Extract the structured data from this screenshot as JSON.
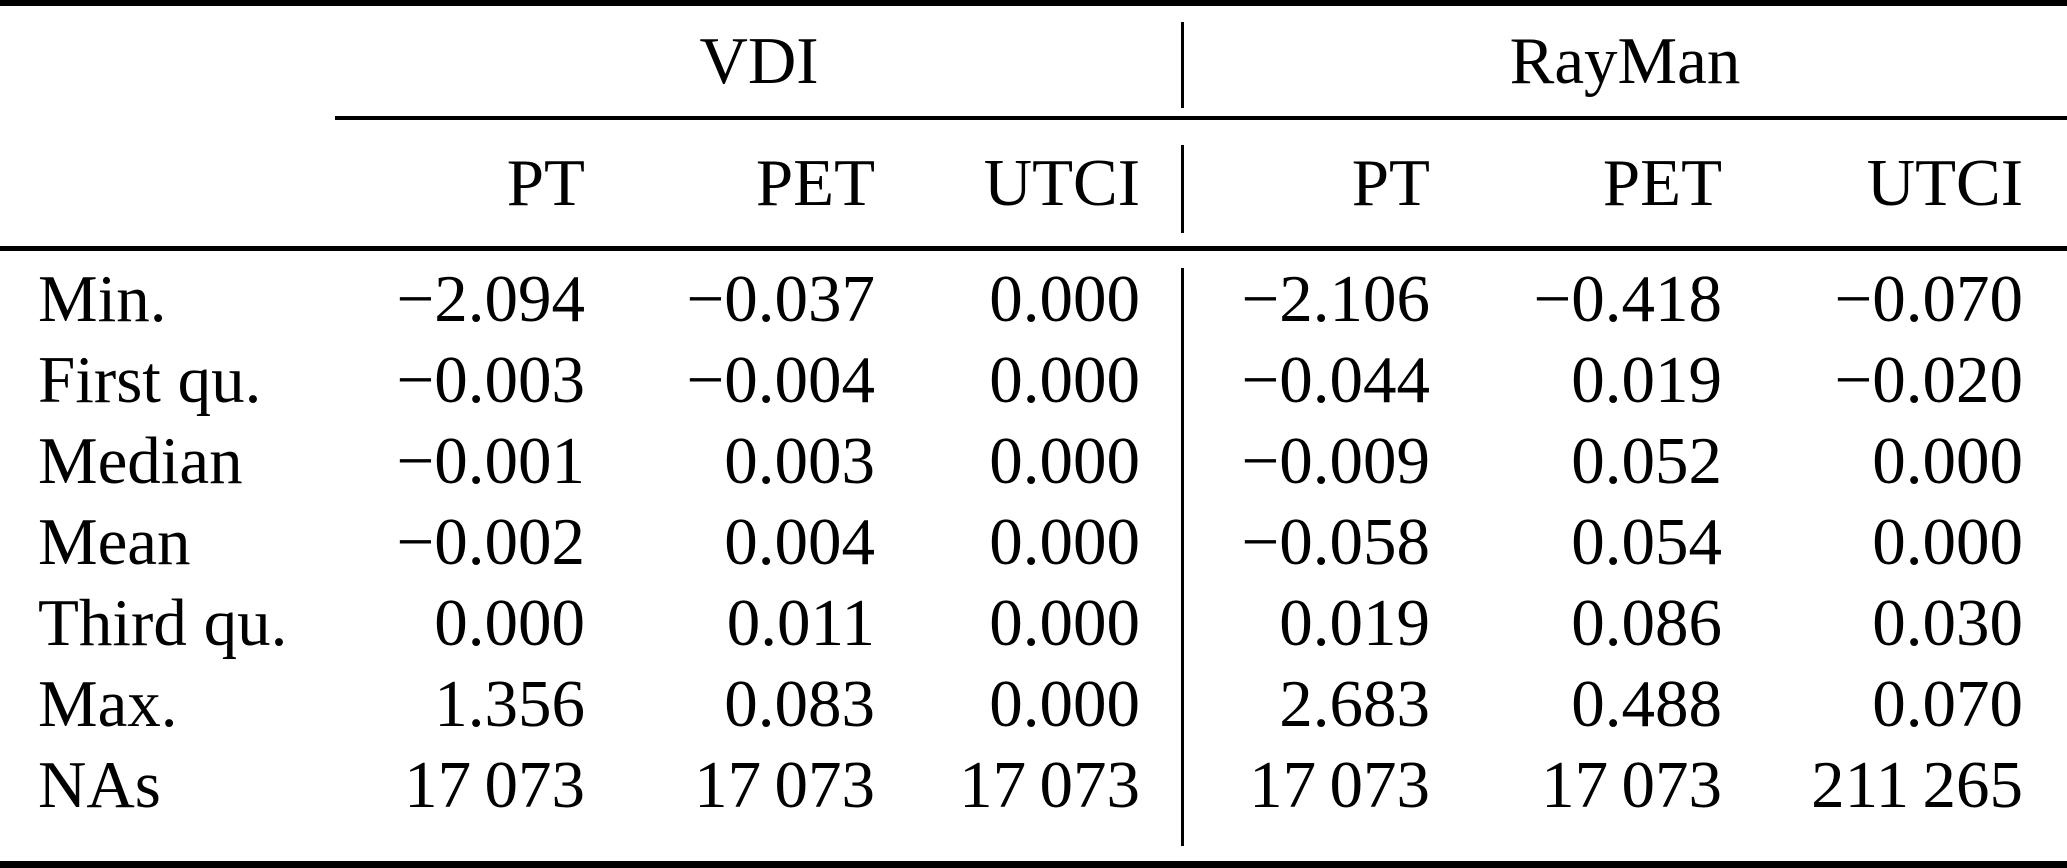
{
  "table": {
    "group_headers": [
      "VDI",
      "RayMan"
    ],
    "column_headers": [
      "PT",
      "PET",
      "UTCI",
      "PT",
      "PET",
      "UTCI"
    ],
    "rows": [
      {
        "label": "Min.",
        "cells": [
          "−2.094",
          "−0.037",
          "0.000",
          "−2.106",
          "−0.418",
          "−0.070"
        ]
      },
      {
        "label": "First qu.",
        "cells": [
          "−0.003",
          "−0.004",
          "0.000",
          "−0.044",
          "0.019",
          "−0.020"
        ]
      },
      {
        "label": "Median",
        "cells": [
          "−0.001",
          "0.003",
          "0.000",
          "−0.009",
          "0.052",
          "0.000"
        ]
      },
      {
        "label": "Mean",
        "cells": [
          "−0.002",
          "0.004",
          "0.000",
          "−0.058",
          "0.054",
          "0.000"
        ]
      },
      {
        "label": "Third qu.",
        "cells": [
          "0.000",
          "0.011",
          "0.000",
          "0.019",
          "0.086",
          "0.030"
        ]
      },
      {
        "label": "Max.",
        "cells": [
          "1.356",
          "0.083",
          "0.000",
          "2.683",
          "0.488",
          "0.070"
        ]
      },
      {
        "label": "NAs",
        "cells": [
          "17 073",
          "17 073",
          "17 073",
          "17 073",
          "17 073",
          "211 265"
        ]
      }
    ],
    "colors": {
      "text": "#000000",
      "background": "#ffffff",
      "rule": "#000000"
    }
  }
}
